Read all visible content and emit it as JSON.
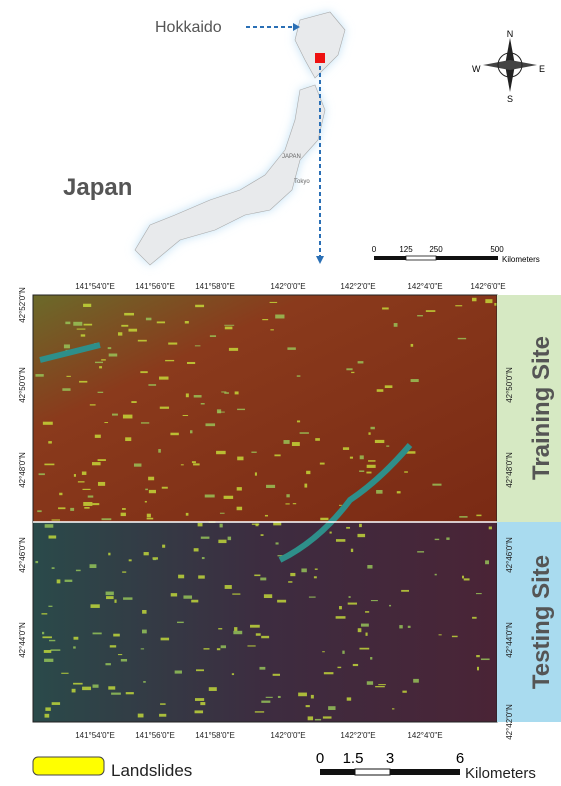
{
  "inset_map": {
    "region_label": "Hokkaido",
    "country_label": "Japan",
    "country_small_label": "JAPAN",
    "city_label": "Tokyo",
    "compass": {
      "north": "N",
      "east": "E",
      "south": "S",
      "west": "W"
    },
    "scale_bar": {
      "labels": [
        "0",
        "125",
        "250",
        "500"
      ],
      "unit": "Kilometers"
    }
  },
  "main_map": {
    "top_ticks": [
      "141°54'0\"E",
      "141°56'0\"E",
      "141°58'0\"E",
      "142°0'0\"E",
      "142°2'0\"E",
      "142°4'0\"E",
      "142°6'0\"E"
    ],
    "bottom_ticks": [
      "141°54'0\"E",
      "141°56'0\"E",
      "141°58'0\"E",
      "142°0'0\"E",
      "142°2'0\"E",
      "142°4'0\"E"
    ],
    "left_ticks": [
      "42°52'0\"N",
      "42°50'0\"N",
      "42°48'0\"N",
      "42°46'0\"N",
      "42°44'0\"N"
    ],
    "right_ticks": [
      "42°50'0\"N",
      "42°48'0\"N",
      "42°46'0\"N",
      "42°44'0\"N",
      "42°42'0\"N"
    ],
    "training_label": "Training Site",
    "testing_label": "Testing Site"
  },
  "legend": {
    "label": "Landslides"
  },
  "scale_bar": {
    "labels": [
      "0",
      "1.5",
      "3",
      "6"
    ],
    "unit": "Kilometers"
  }
}
